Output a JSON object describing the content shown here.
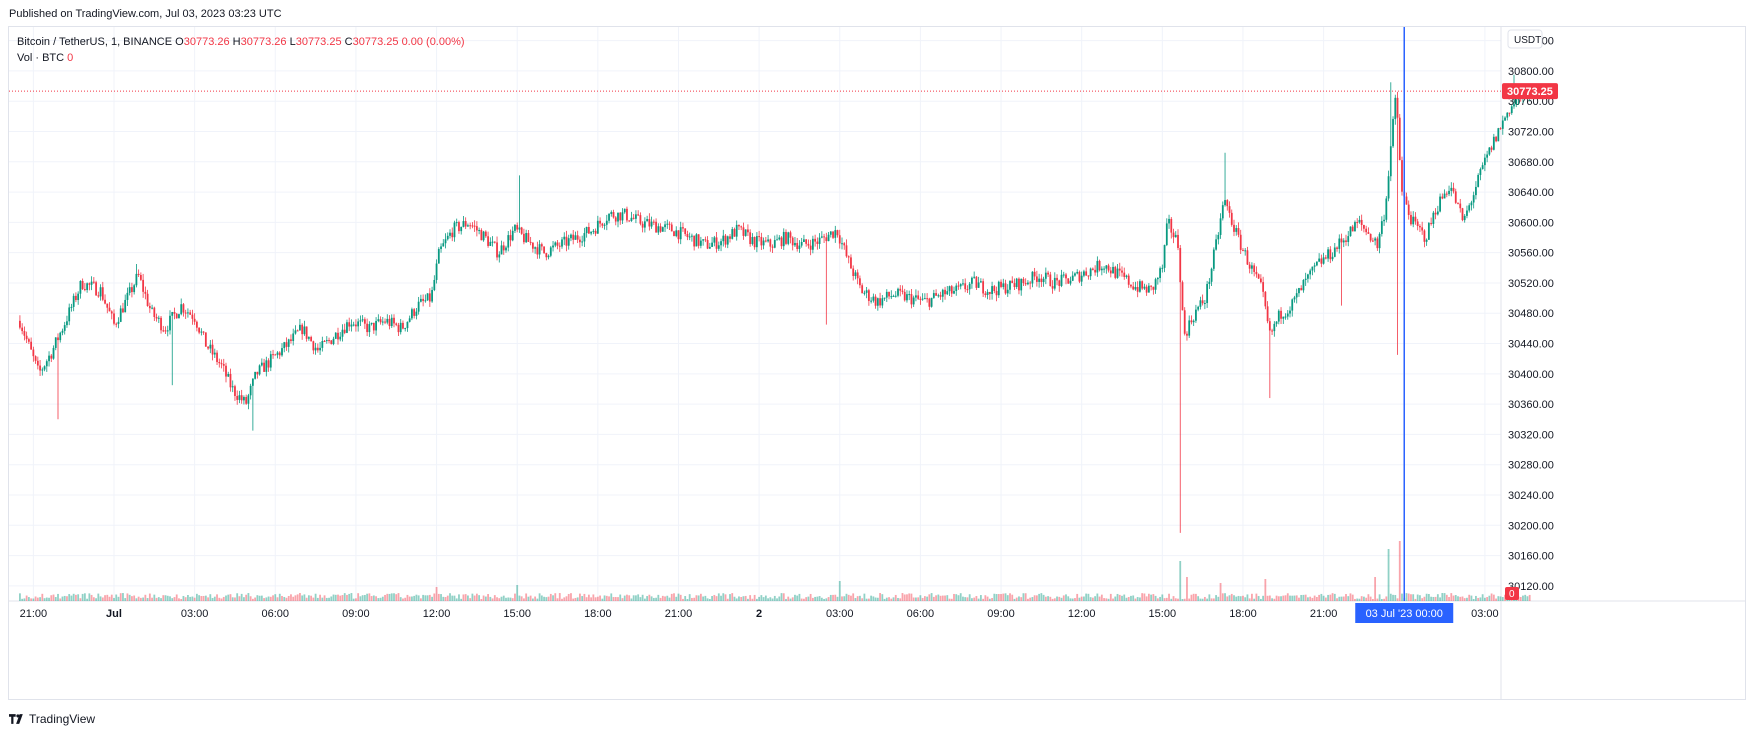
{
  "header": {
    "published": "Published on TradingView.com, Jul 03, 2023 03:23 UTC"
  },
  "legend": {
    "symbol": "Bitcoin / TetherUS, 1, BINANCE",
    "o_label": "O",
    "o_value": "30773.26",
    "h_label": "H",
    "h_value": "30773.26",
    "l_label": "L",
    "l_value": "30773.25",
    "c_label": "C",
    "c_value": "30773.25",
    "change": "0.00 (0.00%)",
    "vol_label": "Vol · BTC",
    "vol_value": "0"
  },
  "footer": {
    "brand": "TradingView"
  },
  "colors": {
    "up": "#089981",
    "down": "#f23645",
    "grid": "#f0f3fa",
    "crosshair": "#2962ff",
    "axis_text": "#131722"
  },
  "chart_data": {
    "type": "candlestick",
    "currency_label": "USDT",
    "y_ticks": [
      30120,
      30160,
      30200,
      30240,
      30280,
      30320,
      30360,
      30400,
      30440,
      30480,
      30520,
      30560,
      30600,
      30640,
      30680,
      30720,
      30760,
      30800,
      30840
    ],
    "ylim": [
      30100,
      30858
    ],
    "x_ticks": [
      "21:00",
      "Jul",
      "03:00",
      "06:00",
      "09:00",
      "12:00",
      "15:00",
      "18:00",
      "21:00",
      "2",
      "03:00",
      "06:00",
      "09:00",
      "12:00",
      "15:00",
      "18:00",
      "21:00",
      "03:00"
    ],
    "x_tick_hours": [
      -3,
      0,
      3,
      6,
      9,
      12,
      15,
      18,
      21,
      24,
      27,
      30,
      33,
      36,
      39,
      42,
      45,
      51
    ],
    "crosshair_label": "03 Jul '23   00:00",
    "crosshair_hour": 48,
    "last_price": 30773.25,
    "last_price_label": "30773.25",
    "volume_label": "0",
    "path_points": [
      [
        -3.5,
        30470
      ],
      [
        -2.8,
        30400
      ],
      [
        -2.3,
        30430
      ],
      [
        -1.8,
        30470
      ],
      [
        -1.2,
        30520
      ],
      [
        -0.5,
        30510
      ],
      [
        0.0,
        30465
      ],
      [
        0.5,
        30500
      ],
      [
        0.9,
        30530
      ],
      [
        1.4,
        30480
      ],
      [
        1.9,
        30460
      ],
      [
        2.5,
        30490
      ],
      [
        3.0,
        30475
      ],
      [
        3.4,
        30440
      ],
      [
        4.0,
        30410
      ],
      [
        4.4,
        30380
      ],
      [
        4.9,
        30360
      ],
      [
        5.3,
        30400
      ],
      [
        5.9,
        30420
      ],
      [
        6.5,
        30440
      ],
      [
        7.0,
        30460
      ],
      [
        7.6,
        30430
      ],
      [
        8.2,
        30450
      ],
      [
        8.8,
        30470
      ],
      [
        9.5,
        30460
      ],
      [
        10.1,
        30470
      ],
      [
        10.7,
        30460
      ],
      [
        11.3,
        30490
      ],
      [
        11.8,
        30500
      ],
      [
        12.1,
        30560
      ],
      [
        12.6,
        30590
      ],
      [
        13.2,
        30600
      ],
      [
        13.8,
        30580
      ],
      [
        14.3,
        30560
      ],
      [
        14.9,
        30590
      ],
      [
        15.4,
        30575
      ],
      [
        16.0,
        30560
      ],
      [
        16.6,
        30570
      ],
      [
        17.2,
        30580
      ],
      [
        17.8,
        30590
      ],
      [
        18.4,
        30610
      ],
      [
        19.0,
        30610
      ],
      [
        19.6,
        30600
      ],
      [
        20.2,
        30595
      ],
      [
        20.8,
        30590
      ],
      [
        21.4,
        30580
      ],
      [
        22.0,
        30570
      ],
      [
        22.6,
        30575
      ],
      [
        23.2,
        30590
      ],
      [
        23.8,
        30575
      ],
      [
        24.4,
        30570
      ],
      [
        25.0,
        30580
      ],
      [
        25.6,
        30570
      ],
      [
        26.2,
        30575
      ],
      [
        26.9,
        30590
      ],
      [
        27.3,
        30550
      ],
      [
        27.8,
        30510
      ],
      [
        28.4,
        30495
      ],
      [
        29.0,
        30505
      ],
      [
        29.6,
        30500
      ],
      [
        30.2,
        30495
      ],
      [
        30.8,
        30505
      ],
      [
        31.4,
        30510
      ],
      [
        32.0,
        30520
      ],
      [
        32.6,
        30510
      ],
      [
        33.2,
        30515
      ],
      [
        33.8,
        30520
      ],
      [
        34.4,
        30530
      ],
      [
        35.0,
        30520
      ],
      [
        35.6,
        30525
      ],
      [
        36.2,
        30535
      ],
      [
        36.8,
        30545
      ],
      [
        37.4,
        30530
      ],
      [
        38.0,
        30515
      ],
      [
        38.6,
        30510
      ],
      [
        39.0,
        30540
      ],
      [
        39.2,
        30600
      ],
      [
        39.6,
        30570
      ],
      [
        39.8,
        30450
      ],
      [
        40.2,
        30480
      ],
      [
        40.6,
        30500
      ],
      [
        41.0,
        30570
      ],
      [
        41.3,
        30630
      ],
      [
        41.8,
        30580
      ],
      [
        42.3,
        30540
      ],
      [
        42.7,
        30510
      ],
      [
        43.0,
        30450
      ],
      [
        43.4,
        30480
      ],
      [
        43.8,
        30490
      ],
      [
        44.3,
        30520
      ],
      [
        44.8,
        30545
      ],
      [
        45.3,
        30560
      ],
      [
        45.8,
        30580
      ],
      [
        46.3,
        30600
      ],
      [
        46.8,
        30580
      ],
      [
        47.0,
        30570
      ],
      [
        47.3,
        30620
      ],
      [
        47.5,
        30700
      ],
      [
        47.7,
        30770
      ],
      [
        47.9,
        30640
      ],
      [
        48.3,
        30600
      ],
      [
        48.8,
        30580
      ],
      [
        49.2,
        30620
      ],
      [
        49.7,
        30650
      ],
      [
        50.2,
        30600
      ],
      [
        50.6,
        30640
      ],
      [
        51.0,
        30680
      ],
      [
        51.5,
        30720
      ],
      [
        51.9,
        30750
      ],
      [
        52.3,
        30765
      ],
      [
        52.7,
        30773
      ]
    ],
    "spikes": [
      {
        "hour": -2.1,
        "low": 30340
      },
      {
        "hour": 0.8,
        "high": 30545
      },
      {
        "hour": 2.2,
        "low": 30385
      },
      {
        "hour": 5.2,
        "low": 30325
      },
      {
        "hour": 15.1,
        "high": 30662
      },
      {
        "hour": 26.5,
        "low": 30465
      },
      {
        "hour": 39.65,
        "low": 30190
      },
      {
        "hour": 41.3,
        "high": 30692
      },
      {
        "hour": 43.0,
        "low": 30368
      },
      {
        "hour": 45.7,
        "low": 30490
      },
      {
        "hour": 47.5,
        "high": 30785
      },
      {
        "hour": 47.75,
        "low": 30425
      },
      {
        "hour": 52.1,
        "high": 30795
      }
    ],
    "volume_spikes": [
      {
        "hour": 12.0,
        "value": 0.35
      },
      {
        "hour": 15.0,
        "value": 0.4
      },
      {
        "hour": 27.0,
        "value": 0.5
      },
      {
        "hour": 39.7,
        "value": 1.0
      },
      {
        "hour": 39.9,
        "value": 0.6
      },
      {
        "hour": 41.2,
        "value": 0.45
      },
      {
        "hour": 42.8,
        "value": 0.55
      },
      {
        "hour": 47.4,
        "value": 1.3
      },
      {
        "hour": 47.8,
        "value": 1.8
      },
      {
        "hour": 46.9,
        "value": 0.6
      }
    ]
  }
}
